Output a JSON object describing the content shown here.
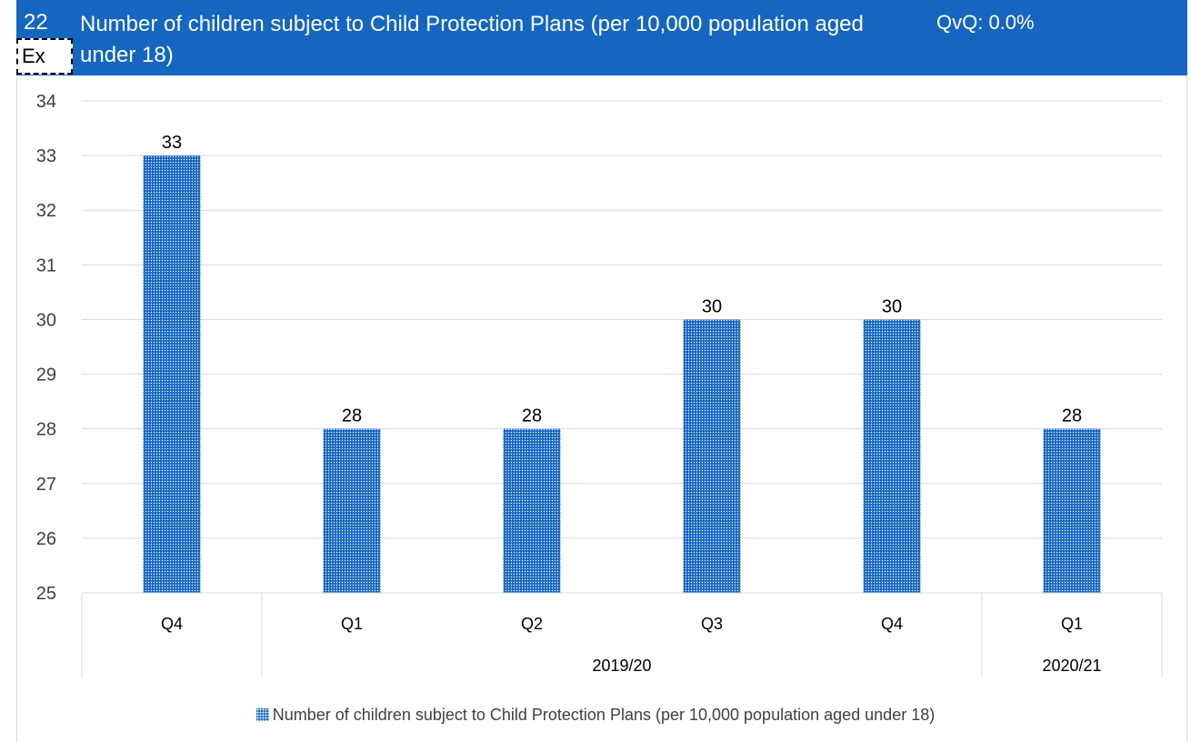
{
  "header": {
    "number": "22",
    "title": "Number of children subject to Child Protection Plans (per 10,000 population aged under 18)",
    "qvq": "QvQ: 0.0%",
    "ex_label": "Ex"
  },
  "colors": {
    "header_bg": "#1566C0",
    "bar": "#1566C0",
    "grid": "#d9d9d9"
  },
  "chart_data": {
    "type": "bar",
    "categories": [
      "Q4",
      "Q1",
      "Q2",
      "Q3",
      "Q4",
      "Q1"
    ],
    "category_groups": [
      {
        "label": "",
        "span": 1
      },
      {
        "label": "2019/20",
        "span": 4
      },
      {
        "label": "2020/21",
        "span": 1
      }
    ],
    "series": [
      {
        "name": "Number of children subject to Child Protection Plans (per 10,000 population aged under 18)",
        "values": [
          33,
          28,
          28,
          30,
          30,
          28
        ]
      }
    ],
    "data_labels": [
      "33",
      "28",
      "28",
      "30",
      "30",
      "28"
    ],
    "ylim": [
      25,
      34
    ],
    "yticks": [
      "25",
      "26",
      "27",
      "28",
      "29",
      "30",
      "31",
      "32",
      "33",
      "34"
    ],
    "grid": true,
    "legend": "bottom"
  }
}
